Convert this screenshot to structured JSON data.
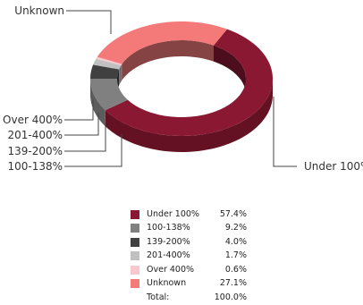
{
  "chart_data": {
    "type": "pie",
    "style": "3d-donut",
    "categories": [
      "Under 100%",
      "100-138%",
      "139-200%",
      "201-400%",
      "Over 400%",
      "Unknown"
    ],
    "values": [
      57.4,
      9.2,
      4.0,
      1.7,
      0.6,
      27.1
    ],
    "value_labels": [
      "57.4%",
      "9.2%",
      "4.0%",
      "1.7%",
      "0.6%",
      "27.1%"
    ],
    "colors": [
      "#8b1832",
      "#808080",
      "#404040",
      "#c0c0c0",
      "#f8c8cc",
      "#f47a7a"
    ],
    "total_label": "Total:",
    "total_value": "100.0%",
    "legend_position": "bottom-center"
  }
}
